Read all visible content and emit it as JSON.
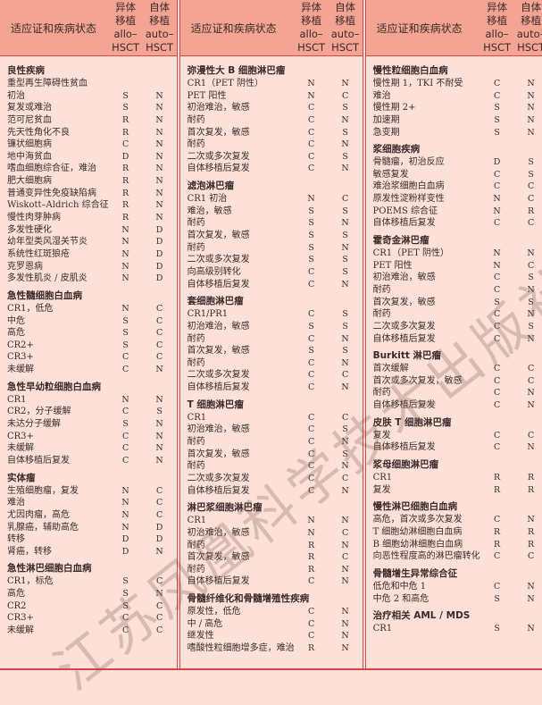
{
  "header": {
    "label": "适应证和疾病状态",
    "allo": [
      "异体",
      "移植",
      "allo–",
      "HSCT"
    ],
    "auto": [
      "自体",
      "移植",
      "auto–",
      "HSCT"
    ]
  },
  "watermark": "江苏凤凰科学技术出版社",
  "colors": {
    "header_bg": "#f4a492",
    "body_bg": "#fde1d8",
    "rule": "#d9434a"
  },
  "columns": [
    {
      "sections": [
        {
          "title": "良性疾病",
          "rows": [
            [
              "重型再生障碍性贫血",
              "",
              ""
            ],
            [
              "初治",
              "S",
              "N"
            ],
            [
              "复发或难治",
              "S",
              "N"
            ],
            [
              "范可尼贫血",
              "R",
              "N"
            ],
            [
              "先天性角化不良",
              "R",
              "N"
            ],
            [
              "镰状细胞病",
              "C",
              "N"
            ],
            [
              "地中海贫血",
              "D",
              "N"
            ],
            [
              "嗜血细胞综合征，难治",
              "R",
              "N"
            ],
            [
              "肥大细胞病",
              "R",
              "N"
            ],
            [
              "普通变异性免疫缺陷病",
              "R",
              "N"
            ],
            [
              "Wiskott–Aldrich 综合征",
              "R",
              "N"
            ],
            [
              "慢性肉芽肿病",
              "R",
              "N"
            ],
            [
              "多发性硬化",
              "N",
              "D"
            ],
            [
              "幼年型类风湿关节炎",
              "N",
              "D"
            ],
            [
              "系统性红斑狼疮",
              "N",
              "D"
            ],
            [
              "克罗恩病",
              "N",
              "D"
            ],
            [
              "多发性肌炎 / 皮肌炎",
              "N",
              "D"
            ]
          ]
        },
        {
          "title": "急性髓细胞白血病",
          "rows": [
            [
              "CR1，低危",
              "N",
              "C"
            ],
            [
              "中危",
              "S",
              "C"
            ],
            [
              "高危",
              "S",
              "C"
            ],
            [
              "CR2+",
              "S",
              "C"
            ],
            [
              "CR3+",
              "C",
              "C"
            ],
            [
              "未缓解",
              "C",
              "N"
            ]
          ]
        },
        {
          "title": "急性早幼粒细胞白血病",
          "rows": [
            [
              "CR1",
              "N",
              "N"
            ],
            [
              "CR2，分子缓解",
              "C",
              "S"
            ],
            [
              "未达分子缓解",
              "S",
              "N"
            ],
            [
              "CR3+",
              "C",
              "N"
            ],
            [
              "未缓解",
              "C",
              "N"
            ],
            [
              "自体移植后复发",
              "C",
              "N"
            ]
          ]
        },
        {
          "title": "实体瘤",
          "rows": [
            [
              "生殖细胞瘤，复发",
              "N",
              "C"
            ],
            [
              "难治",
              "N",
              "C"
            ],
            [
              "尤因肉瘤，高危",
              "N",
              "C"
            ],
            [
              "乳腺癌，辅助高危",
              "N",
              "D"
            ],
            [
              "转移",
              "D",
              "D"
            ],
            [
              "肾癌，转移",
              "D",
              "N"
            ]
          ]
        },
        {
          "title": "急性淋巴细胞白血病",
          "rows": [
            [
              "CR1，标危",
              "S",
              "C"
            ],
            [
              "高危",
              "S",
              "N"
            ],
            [
              "CR2",
              "S",
              "C"
            ],
            [
              "CR3+",
              "C",
              "C"
            ],
            [
              "未缓解",
              "C",
              "C"
            ]
          ]
        }
      ]
    },
    {
      "sections": [
        {
          "title": "弥漫性大 B 细胞淋巴瘤",
          "rows": [
            [
              "CR1（PET 阴性）",
              "N",
              "N"
            ],
            [
              "PET 阳性",
              "N",
              "C"
            ],
            [
              "初治难治，敏感",
              "C",
              "S"
            ],
            [
              "耐药",
              "C",
              "N"
            ],
            [
              "首次复发，敏感",
              "C",
              "S"
            ],
            [
              "耐药",
              "C",
              "N"
            ],
            [
              "二次或多次复发",
              "C",
              "S"
            ],
            [
              "自体移植后复发",
              "C",
              "N"
            ]
          ]
        },
        {
          "title": "滤泡淋巴瘤",
          "rows": [
            [
              "CR1 初治",
              "N",
              "C"
            ],
            [
              "难治，敏感",
              "S",
              "S"
            ],
            [
              "耐药",
              "S",
              "N"
            ],
            [
              "首次复发，敏感",
              "S",
              "S"
            ],
            [
              "耐药",
              "S",
              "N"
            ],
            [
              "二次或多次复发",
              "S",
              "S"
            ],
            [
              "向高级别转化",
              "C",
              "S"
            ],
            [
              "自体移植后复发",
              "C",
              "N"
            ]
          ]
        },
        {
          "title": "套细胞淋巴瘤",
          "rows": [
            [
              "CR1/PR1",
              "C",
              "S"
            ],
            [
              "初治难治，敏感",
              "S",
              "S"
            ],
            [
              "耐药",
              "C",
              "N"
            ],
            [
              "首次复发，敏感",
              "S",
              "S"
            ],
            [
              "耐药",
              "C",
              "N"
            ],
            [
              "二次或多次复发",
              "C",
              "C"
            ],
            [
              "自体移植后复发",
              "C",
              "N"
            ]
          ]
        },
        {
          "title": "T 细胞淋巴瘤",
          "rows": [
            [
              "CR1",
              "C",
              "C"
            ],
            [
              "初治难治，敏感",
              "C",
              "S"
            ],
            [
              "耐药",
              "C",
              "N"
            ],
            [
              "首次复发，敏感",
              "C",
              "S"
            ],
            [
              "耐药",
              "C",
              "N"
            ],
            [
              "二次或多次复发",
              "C",
              "C"
            ],
            [
              "自体移植后复发",
              "C",
              "N"
            ]
          ]
        },
        {
          "title": "淋巴浆细胞淋巴瘤",
          "rows": [
            [
              "CR1",
              "N",
              "N"
            ],
            [
              "初治难治，敏感",
              "N",
              "C"
            ],
            [
              "耐药",
              "R",
              "N"
            ],
            [
              "首次复发，敏感",
              "R",
              "C"
            ],
            [
              "耐药",
              "R",
              "N"
            ],
            [
              "自体移植后复发",
              "C",
              "N"
            ]
          ]
        },
        {
          "title": "骨髓纤维化和骨髓增殖性疾病",
          "rows": [
            [
              "原发性，低危",
              "C",
              "N"
            ],
            [
              "中 / 高危",
              "C",
              "N"
            ],
            [
              "继发性",
              "C",
              "N"
            ],
            [
              "嗜酸性粒细胞增多症，难治",
              "R",
              "N"
            ]
          ]
        }
      ]
    },
    {
      "sections": [
        {
          "title": "慢性粒细胞白血病",
          "rows": [
            [
              "慢性期 1，TKI 不耐受",
              "C",
              "N"
            ],
            [
              "难治",
              "C",
              "N"
            ],
            [
              "慢性期 2+",
              "S",
              "N"
            ],
            [
              "加速期",
              "S",
              "N"
            ],
            [
              "急变期",
              "S",
              "N"
            ]
          ]
        },
        {
          "title": "浆细胞疾病",
          "rows": [
            [
              "骨髓瘤，初治反应",
              "D",
              "S"
            ],
            [
              "敏感复发",
              "C",
              "S"
            ],
            [
              "难治浆细胞白血病",
              "C",
              "C"
            ],
            [
              "原发性淀粉样变性",
              "N",
              "C"
            ],
            [
              "POEMS 综合征",
              "N",
              "R"
            ],
            [
              "自体移植后复发",
              "C",
              "C"
            ]
          ]
        },
        {
          "title": "霍奇金淋巴瘤",
          "rows": [
            [
              "CR1（PET 阴性）",
              "N",
              "N"
            ],
            [
              "PET 阳性",
              "N",
              "C"
            ],
            [
              "初治难治，敏感",
              "C",
              "S"
            ],
            [
              "耐药",
              "C",
              "N"
            ],
            [
              "首次复发，敏感",
              "S",
              "S"
            ],
            [
              "耐药",
              "C",
              "N"
            ],
            [
              "二次或多次复发",
              "C",
              "S"
            ],
            [
              "自体移植后复发",
              "C",
              "N"
            ]
          ]
        },
        {
          "title": "Burkitt 淋巴瘤",
          "rows": [
            [
              "首次缓解",
              "C",
              "C"
            ],
            [
              "首次或多次复发，敏感",
              "C",
              "C"
            ],
            [
              "耐药",
              "C",
              "N"
            ],
            [
              "自体移植后复发",
              "C",
              "N"
            ]
          ]
        },
        {
          "title": "皮肤 T 细胞淋巴瘤",
          "rows": [
            [
              "复发",
              "C",
              "C"
            ],
            [
              "自体移植后复发",
              "C",
              "N"
            ]
          ]
        },
        {
          "title": "浆母细胞淋巴瘤",
          "rows": [
            [
              "CR1",
              "R",
              "R"
            ],
            [
              "复发",
              "R",
              "R"
            ]
          ]
        },
        {
          "title": "慢性淋巴细胞白血病",
          "rows": [
            [
              "高危，首次或多次复发",
              "C",
              "N"
            ],
            [
              "T 细胞幼淋细胞白血病",
              "R",
              "R"
            ],
            [
              "B 细胞幼淋细胞白血病",
              "R",
              "R"
            ],
            [
              "向恶性程度高的淋巴瘤转化",
              "C",
              "C"
            ]
          ]
        },
        {
          "title": "骨髓增生异常综合征",
          "rows": [
            [
              "低危和中危 1",
              "C",
              "N"
            ],
            [
              "中危 2 和高危",
              "S",
              "N"
            ]
          ]
        },
        {
          "title": "治疗相关 AML / MDS",
          "rows": [
            [
              "CR1",
              "S",
              "N"
            ]
          ]
        }
      ]
    }
  ]
}
